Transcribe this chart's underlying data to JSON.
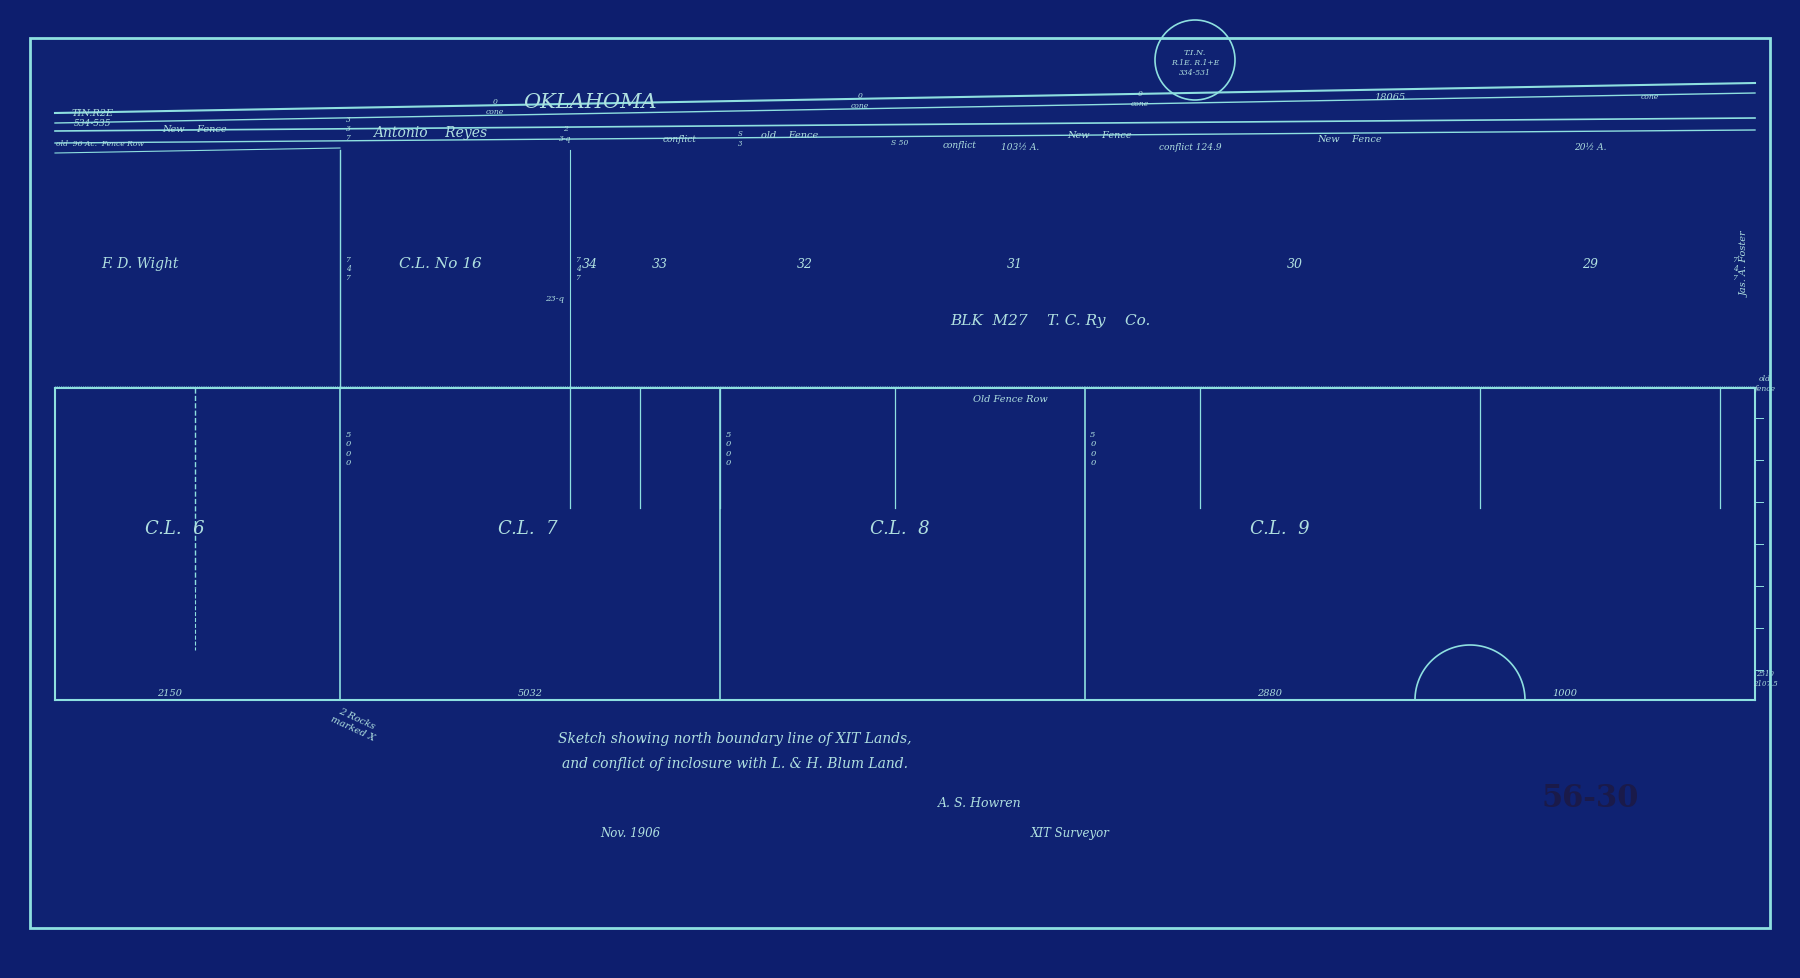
{
  "bg_color": "#0d1e6e",
  "paper_color": "#0e2070",
  "line_color": "#8ee0e0",
  "text_color": "#b0e0e0",
  "title_line1": "Sketch showing north boundary line of XIT Lands,",
  "title_line2": "and conflict of inclosure with L. & H. Blum Land.",
  "signature": "A. S. Howren",
  "date": "Nov. 1906",
  "surveyor": "XIT Surveyor",
  "stamp": "56-30",
  "top_circle_text": "T.I.N.\nR.1E. R.1+E\n334-531",
  "tin_text": "TIN.R2E\n534-535",
  "oklahoma_text": "OKLAHOMA",
  "antonio_reyes": "Antonio    Reyes",
  "fd_wight": "F. D. Wight",
  "cl_no16": "C.L. No 16",
  "blk_text": "BLK  M27    T. C. Ry    Co.",
  "james_foster": "Jas. A. Foster",
  "old_fence_row_right": "Old Fence Row",
  "rocks_text": "2 Rocks\nmarked X",
  "cl6": "C.L.  6",
  "cl7": "C.L.  7",
  "cl8": "C.L.  8",
  "cl9": "C.L.  9",
  "acres_103": "103½ A.",
  "acres_20": "20½ A.",
  "dist_2150": "2150",
  "dist_5032": "5032",
  "dist_2880": "2880",
  "dist_1000": "1000",
  "dist_18065": "18065",
  "num_34": "34",
  "num_33": "33",
  "num_32": "32",
  "num_31": "31",
  "num_30": "30",
  "num_29": "29"
}
